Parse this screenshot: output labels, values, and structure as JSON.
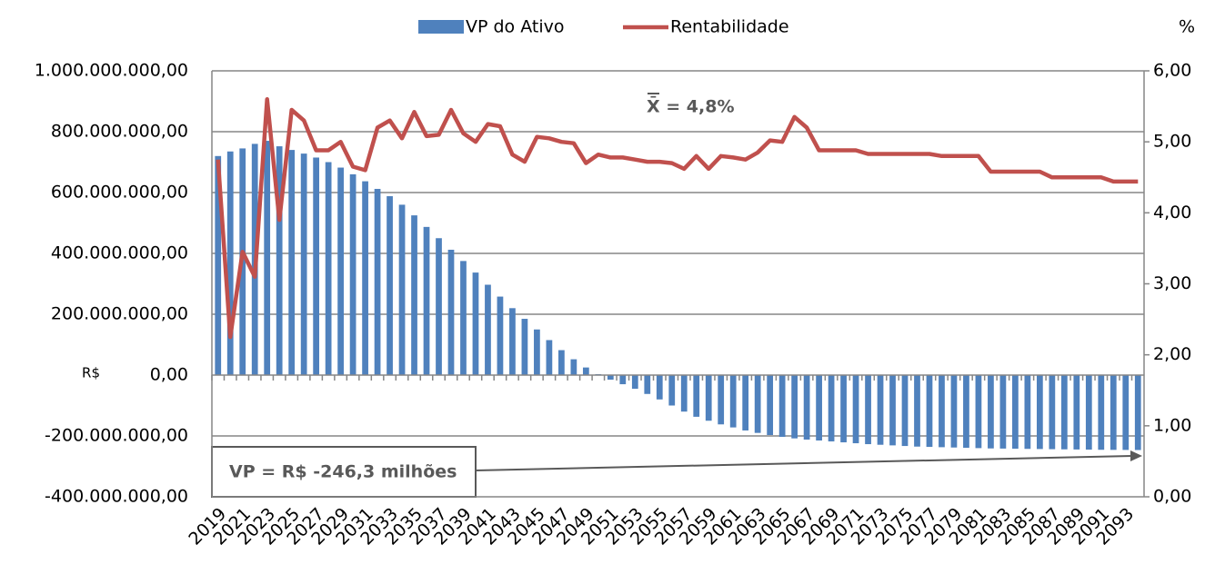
{
  "chart_data": {
    "type": "bar-line",
    "categories": [
      "2019",
      null,
      "2021",
      null,
      "2023",
      null,
      "2025",
      null,
      "2027",
      null,
      "2029",
      null,
      "2031",
      null,
      "2033",
      null,
      "2035",
      null,
      "2037",
      null,
      "2039",
      null,
      "2041",
      null,
      "2043",
      null,
      "2045",
      null,
      "2047",
      null,
      "2049",
      null,
      "2051",
      null,
      "2053",
      null,
      "2055",
      null,
      "2057",
      null,
      "2059",
      null,
      "2061",
      null,
      "2063",
      null,
      "2065",
      null,
      "2067",
      null,
      "2069",
      null,
      "2071",
      null,
      "2073",
      null,
      "2075",
      null,
      "2077",
      null,
      "2079",
      null,
      "2081",
      null,
      "2083",
      null,
      "2085",
      null,
      "2087",
      null,
      "2089",
      null,
      "2091",
      null,
      "2093",
      null
    ],
    "series": [
      {
        "name": "VP do Ativo",
        "type": "bar",
        "color": "#4f81bd",
        "values": [
          720000000,
          735000000,
          745000000,
          760000000,
          770000000,
          752000000,
          740000000,
          728000000,
          715000000,
          700000000,
          682000000,
          660000000,
          637000000,
          612000000,
          588000000,
          560000000,
          525000000,
          487000000,
          450000000,
          412000000,
          375000000,
          337000000,
          297000000,
          258000000,
          220000000,
          185000000,
          150000000,
          115000000,
          82000000,
          52000000,
          25000000,
          3000000,
          -15000000,
          -30000000,
          -45000000,
          -62000000,
          -80000000,
          -100000000,
          -120000000,
          -137000000,
          -150000000,
          -162000000,
          -172000000,
          -182000000,
          -190000000,
          -197000000,
          -203000000,
          -208000000,
          -212000000,
          -215000000,
          -218000000,
          -221000000,
          -224000000,
          -227000000,
          -229000000,
          -231000000,
          -233000000,
          -235000000,
          -236000000,
          -237000000,
          -238000000,
          -239000000,
          -240000000,
          -241000000,
          -241500000,
          -242000000,
          -242500000,
          -243000000,
          -243500000,
          -244000000,
          -244500000,
          -245000000,
          -245500000,
          -245800000,
          -246000000,
          -246300000
        ]
      },
      {
        "name": "Rentabilidade",
        "type": "line",
        "axis": "y2",
        "color": "#c0504d",
        "values": [
          4.75,
          2.25,
          3.45,
          3.1,
          5.6,
          3.9,
          5.45,
          5.3,
          4.88,
          4.88,
          5.0,
          4.65,
          4.6,
          5.2,
          5.3,
          5.05,
          5.42,
          5.08,
          5.1,
          5.45,
          5.12,
          5.0,
          5.25,
          5.22,
          4.82,
          4.72,
          5.07,
          5.05,
          5.0,
          4.98,
          4.7,
          4.82,
          4.78,
          4.78,
          4.75,
          4.72,
          4.72,
          4.7,
          4.62,
          4.8,
          4.62,
          4.8,
          4.78,
          4.75,
          4.85,
          5.02,
          5.0,
          5.35,
          5.2,
          4.88,
          4.88,
          4.88,
          4.88,
          4.83,
          4.83,
          4.83,
          4.83,
          4.83,
          4.83,
          4.8,
          4.8,
          4.8,
          4.8,
          4.58,
          4.58,
          4.58,
          4.58,
          4.58,
          4.5,
          4.5,
          4.5,
          4.5,
          4.5,
          4.44,
          4.44,
          4.44
        ]
      }
    ],
    "y_label": "R$",
    "y2_label": "%",
    "ylim": [
      -400000000,
      1000000000
    ],
    "yticks": [
      {
        "value": -400000000,
        "label": "-400.000.000,00"
      },
      {
        "value": -200000000,
        "label": "-200.000.000,00"
      },
      {
        "value": 0,
        "label": "0,00"
      },
      {
        "value": 200000000,
        "label": "200.000.000,00"
      },
      {
        "value": 400000000,
        "label": "400.000.000,00"
      },
      {
        "value": 600000000,
        "label": "600.000.000,00"
      },
      {
        "value": 800000000,
        "label": "800.000.000,00"
      },
      {
        "value": 1000000000,
        "label": "1.000.000.000,00"
      }
    ],
    "y2lim": [
      0,
      6
    ],
    "y2ticks": [
      {
        "value": 0,
        "label": "0,00"
      },
      {
        "value": 1,
        "label": "1,00"
      },
      {
        "value": 2,
        "label": "2,00"
      },
      {
        "value": 3,
        "label": "3,00"
      },
      {
        "value": 4,
        "label": "4,00"
      },
      {
        "value": 5,
        "label": "5,00"
      },
      {
        "value": 6,
        "label": "6,00"
      }
    ],
    "grid": true,
    "annotations": [
      "X̄ = 4,8%",
      "VP = R$ -246,3 milhões"
    ]
  }
}
